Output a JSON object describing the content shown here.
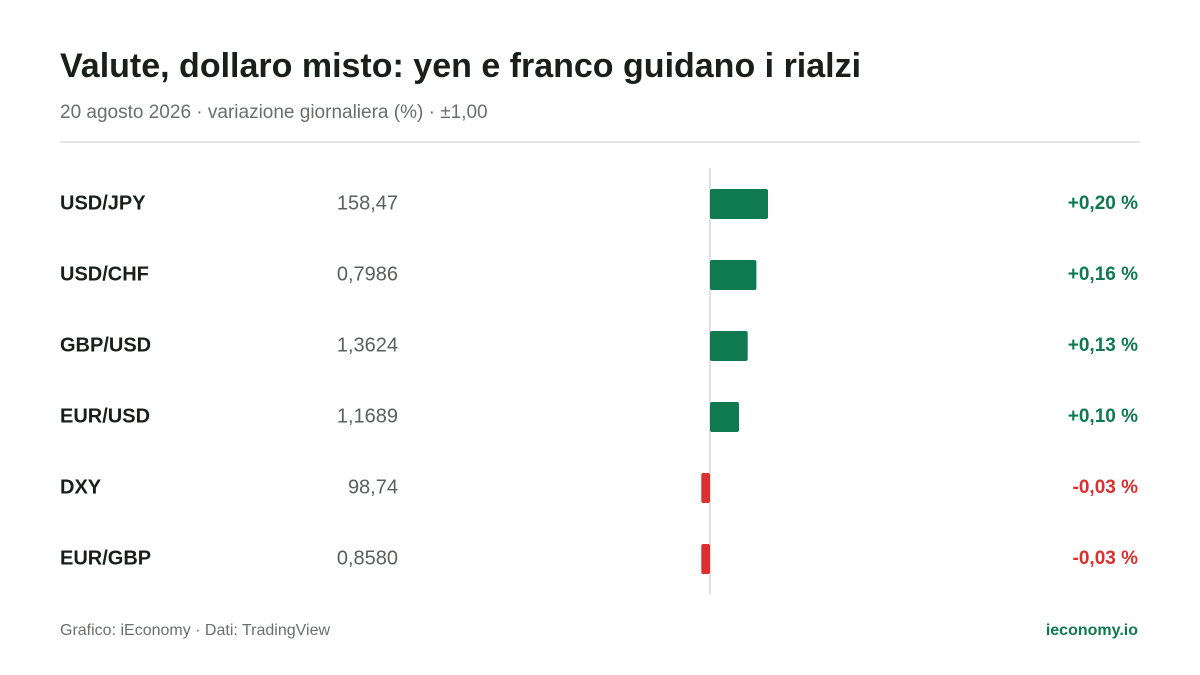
{
  "chart_data": {
    "type": "bar",
    "orientation": "horizontal",
    "title": "Valute, dollaro misto: yen e franco guidano i rialzi",
    "subtitle": "20 agosto 2026 · variazione giornaliera (%) · ±1,00",
    "categories": [
      "USD/JPY",
      "USD/CHF",
      "GBP/USD",
      "EUR/USD",
      "DXY",
      "EUR/GBP"
    ],
    "prices": [
      "158,47",
      "0,7986",
      "1,3624",
      "1,1689",
      "98,74",
      "0,8580"
    ],
    "values": [
      0.2,
      0.16,
      0.13,
      0.1,
      -0.03,
      -0.03
    ],
    "value_labels": [
      "+0,20 %",
      "+0,16 %",
      "+0,13 %",
      "+0,10 %",
      "-0,03 %",
      "-0,03 %"
    ],
    "xlim": [
      -1,
      1
    ],
    "positive_color": "#0f7a4f",
    "negative_color": "#dc2f2f",
    "source": "Grafico: iEconomy · Dati: TradingView",
    "brand": "ieconomy.io"
  }
}
